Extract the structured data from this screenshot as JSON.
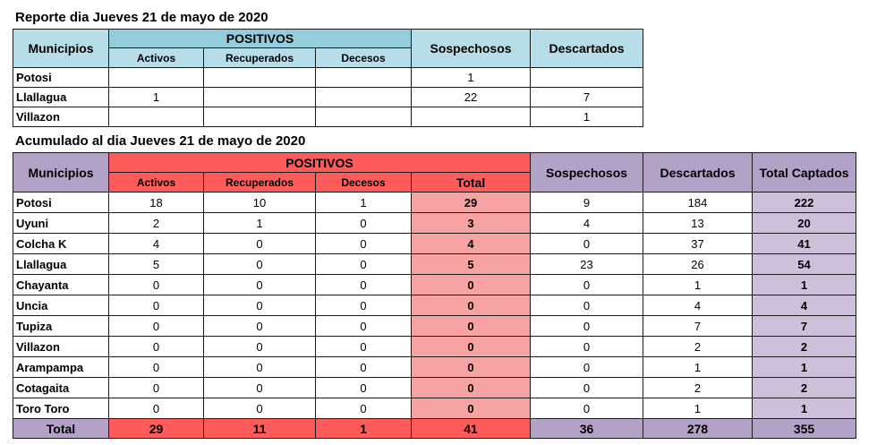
{
  "report_daily": {
    "title": "Reporte dia Jueves 21 de mayo de 2020",
    "headers": {
      "municipios": "Municipios",
      "positivos": "POSITIVOS",
      "activos": "Activos",
      "recuperados": "Recuperados",
      "decesos": "Decesos",
      "sospechosos": "Sospechosos",
      "descartados": "Descartados"
    },
    "rows": [
      {
        "municipio": "Potosi",
        "activos": "",
        "recuperados": "",
        "decesos": "",
        "sospechosos": "1",
        "descartados": ""
      },
      {
        "municipio": "Llallagua",
        "activos": "1",
        "recuperados": "",
        "decesos": "",
        "sospechosos": "22",
        "descartados": "7"
      },
      {
        "municipio": "Villazon",
        "activos": "",
        "recuperados": "",
        "decesos": "",
        "sospechosos": "",
        "descartados": "1"
      }
    ]
  },
  "report_cumulative": {
    "title": "Acumulado al dia Jueves 21 de mayo de 2020",
    "headers": {
      "municipios": "Municipios",
      "positivos": "POSITIVOS",
      "activos": "Activos",
      "recuperados": "Recuperados",
      "decesos": "Decesos",
      "total": "Total",
      "sospechosos": "Sospechosos",
      "descartados": "Descartados",
      "total_captados": "Total Captados"
    },
    "rows": [
      {
        "municipio": "Potosi",
        "activos": "18",
        "recuperados": "10",
        "decesos": "1",
        "total": "29",
        "sospechosos": "9",
        "descartados": "184",
        "total_captados": "222"
      },
      {
        "municipio": "Uyuni",
        "activos": "2",
        "recuperados": "1",
        "decesos": "0",
        "total": "3",
        "sospechosos": "4",
        "descartados": "13",
        "total_captados": "20"
      },
      {
        "municipio": "Colcha K",
        "activos": "4",
        "recuperados": "0",
        "decesos": "0",
        "total": "4",
        "sospechosos": "0",
        "descartados": "37",
        "total_captados": "41"
      },
      {
        "municipio": "Llallagua",
        "activos": "5",
        "recuperados": "0",
        "decesos": "0",
        "total": "5",
        "sospechosos": "23",
        "descartados": "26",
        "total_captados": "54"
      },
      {
        "municipio": "Chayanta",
        "activos": "0",
        "recuperados": "0",
        "decesos": "0",
        "total": "0",
        "sospechosos": "0",
        "descartados": "1",
        "total_captados": "1"
      },
      {
        "municipio": "Uncia",
        "activos": "0",
        "recuperados": "0",
        "decesos": "0",
        "total": "0",
        "sospechosos": "0",
        "descartados": "4",
        "total_captados": "4"
      },
      {
        "municipio": "Tupiza",
        "activos": "0",
        "recuperados": "0",
        "decesos": "0",
        "total": "0",
        "sospechosos": "0",
        "descartados": "7",
        "total_captados": "7"
      },
      {
        "municipio": "Villazon",
        "activos": "0",
        "recuperados": "0",
        "decesos": "0",
        "total": "0",
        "sospechosos": "0",
        "descartados": "2",
        "total_captados": "2"
      },
      {
        "municipio": "Arampampa",
        "activos": "0",
        "recuperados": "0",
        "decesos": "0",
        "total": "0",
        "sospechosos": "0",
        "descartados": "1",
        "total_captados": "1"
      },
      {
        "municipio": "Cotagaita",
        "activos": "0",
        "recuperados": "0",
        "decesos": "0",
        "total": "0",
        "sospechosos": "0",
        "descartados": "2",
        "total_captados": "2"
      },
      {
        "municipio": "Toro Toro",
        "activos": "0",
        "recuperados": "0",
        "decesos": "0",
        "total": "0",
        "sospechosos": "0",
        "descartados": "1",
        "total_captados": "1"
      }
    ],
    "totals": {
      "label": "Total",
      "activos": "29",
      "recuperados": "11",
      "decesos": "1",
      "total": "41",
      "sospechosos": "36",
      "descartados": "278",
      "total_captados": "355"
    }
  },
  "colors": {
    "blue_header": "#b7dde8",
    "red_header": "#ff5b5b",
    "pink_total": "#f8a3a3",
    "lavender_header": "#b3a2c7",
    "lavender_cell": "#ccc0da"
  }
}
